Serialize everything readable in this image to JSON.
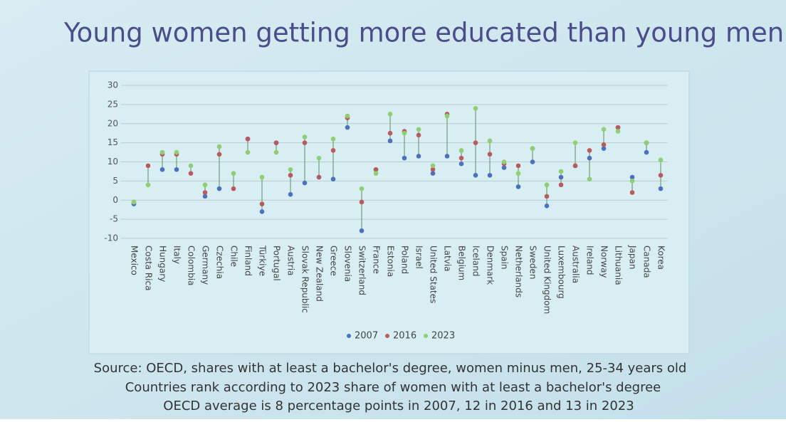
{
  "chart_data": {
    "type": "dot",
    "title": "Young women getting more educated than young men",
    "notes": [
      "Source: OECD, shares with at least a bachelor's degree, women minus men, 25-34 years old",
      "Countries rank according to 2023 share of women with at least a bachelor's degree",
      "OECD average is 8 percentage points in 2007, 12 in 2016 and 13 in 2023"
    ],
    "categories": [
      "Mexico",
      "Costa Rica",
      "Hungary",
      "Italy",
      "Colombia",
      "Germany",
      "Czechia",
      "Chile",
      "Finland",
      "Türkiye",
      "Portugal",
      "Austria",
      "Slovak Republic",
      "New Zealand",
      "Greece",
      "Slovenia",
      "Switzerland",
      "France",
      "Estonia",
      "Poland",
      "Israel",
      "United States",
      "Latvia",
      "Belgium",
      "Iceland",
      "Denmark",
      "Spain",
      "Netherlands",
      "Sweden",
      "United Kingdom",
      "Luxembourg",
      "Australia",
      "Ireland",
      "Norway",
      "Lithuania",
      "Japan",
      "Canada",
      "Korea"
    ],
    "series": [
      {
        "name": "2007",
        "color": "#4a72c0",
        "values": [
          -1,
          null,
          8,
          8,
          null,
          1,
          3,
          null,
          16,
          -3,
          15,
          1.5,
          4.5,
          6,
          5.5,
          19,
          -8,
          8,
          15.5,
          11,
          11.5,
          7,
          11.5,
          9.5,
          6.5,
          6.5,
          8.5,
          3.5,
          10,
          -1.5,
          6,
          9,
          11,
          13.5,
          19,
          6,
          12.5,
          3
        ]
      },
      {
        "name": "2016",
        "color": "#b85a5e",
        "values": [
          -0.5,
          9,
          12,
          12,
          7,
          2,
          12,
          3,
          16,
          -1,
          15,
          6.5,
          15,
          6,
          13,
          21.5,
          -0.5,
          8,
          17.5,
          18,
          17,
          8,
          22.5,
          11,
          15,
          12,
          9.5,
          9,
          13.5,
          1,
          4,
          9,
          13,
          14.5,
          19,
          2,
          15,
          6.5
        ]
      },
      {
        "name": "2023",
        "color": "#8fcf72",
        "values": [
          -0.5,
          4,
          12.5,
          12.5,
          9,
          4,
          14,
          7,
          12.5,
          6,
          12.5,
          8,
          16.5,
          11,
          16,
          22,
          3,
          7,
          22.5,
          17.5,
          18.5,
          9,
          22,
          13,
          24,
          15.5,
          10,
          7,
          13.5,
          4,
          7.5,
          15,
          5.5,
          18.5,
          18,
          5,
          15,
          10.5
        ]
      }
    ],
    "ylim": [
      -10,
      30
    ],
    "yticks": [
      -10,
      -5,
      0,
      5,
      10,
      15,
      20,
      25,
      30
    ],
    "grid": true,
    "legend": "bottom"
  }
}
